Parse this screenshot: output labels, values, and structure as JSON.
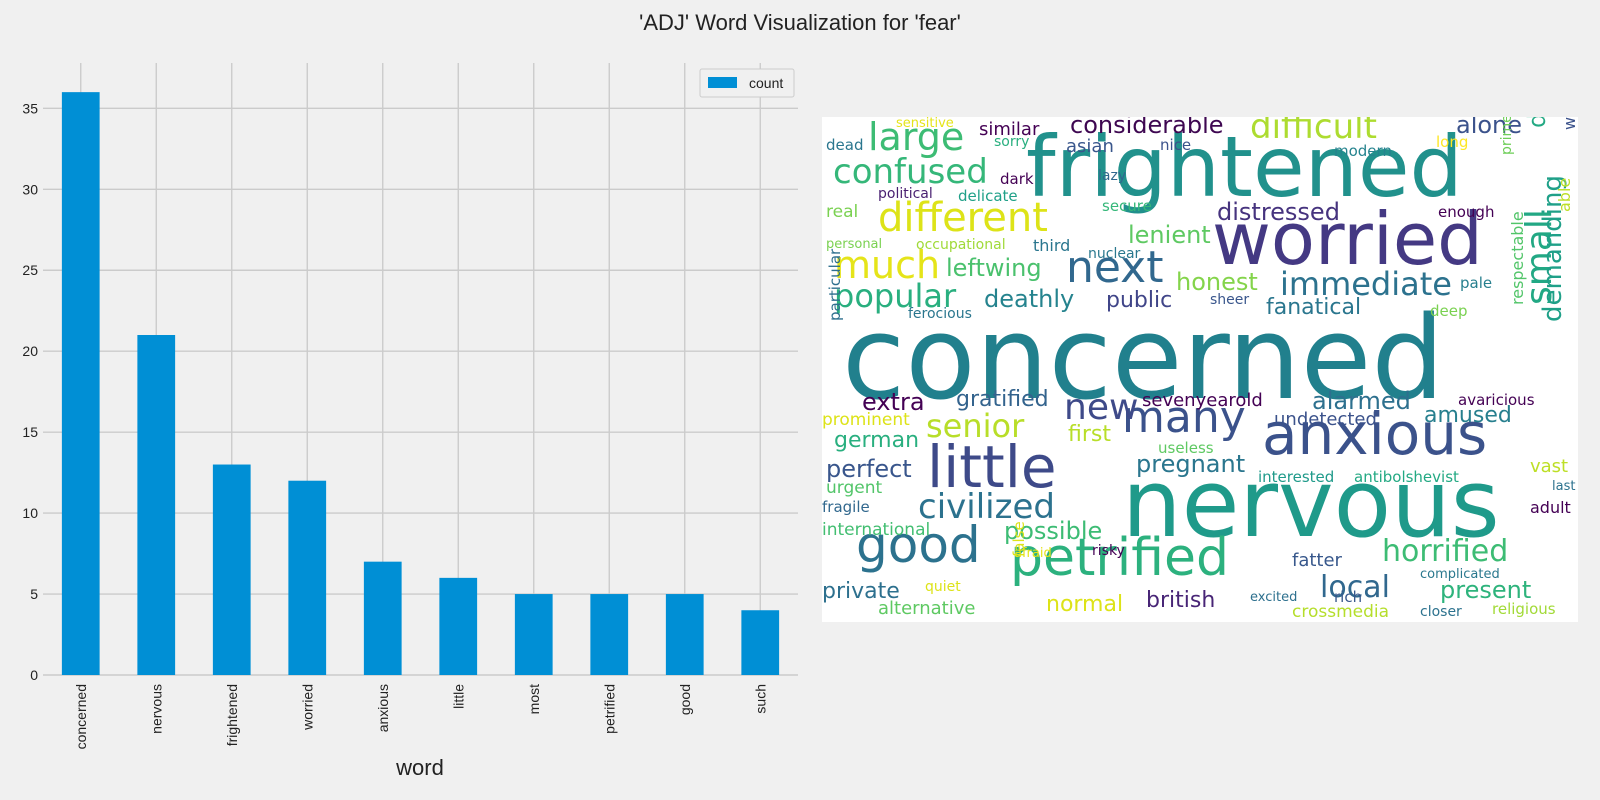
{
  "title": "'ADJ' Word Visualization for 'fear'",
  "chart_data": [
    {
      "type": "bar",
      "categories": [
        "concerned",
        "nervous",
        "frightened",
        "worried",
        "anxious",
        "little",
        "most",
        "petrified",
        "good",
        "such"
      ],
      "values": [
        36,
        21,
        13,
        12,
        7,
        6,
        5,
        5,
        5,
        4
      ],
      "series": [
        {
          "name": "count",
          "values": [
            36,
            21,
            13,
            12,
            7,
            6,
            5,
            5,
            5,
            4
          ]
        }
      ],
      "xlabel": "word",
      "ylabel": "",
      "ylim": [
        0,
        37.8
      ],
      "yticks": [
        0,
        5,
        10,
        15,
        20,
        25,
        30,
        35
      ],
      "grid": true,
      "legend": "top-right",
      "bar_color": "#008fd5"
    },
    {
      "type": "wordcloud",
      "colormap": "viridis",
      "words": [
        {
          "text": "concerned",
          "color": "#21808d"
        },
        {
          "text": "nervous",
          "color": "#1f9a8a"
        },
        {
          "text": "frightened",
          "color": "#21918c"
        },
        {
          "text": "worried",
          "color": "#443983"
        },
        {
          "text": "anxious",
          "color": "#3b528b"
        },
        {
          "text": "little",
          "color": "#3e4a89"
        },
        {
          "text": "petrified",
          "color": "#2cb17e"
        },
        {
          "text": "good",
          "color": "#2c728e"
        },
        {
          "text": "many",
          "color": "#3b528b"
        },
        {
          "text": "next",
          "color": "#31688e"
        },
        {
          "text": "new",
          "color": "#3e4a89"
        },
        {
          "text": "different",
          "color": "#dde318"
        },
        {
          "text": "confused",
          "color": "#35b779"
        },
        {
          "text": "large",
          "color": "#3dbc74"
        },
        {
          "text": "difficult",
          "color": "#addc30"
        },
        {
          "text": "civilized",
          "color": "#2c728e"
        },
        {
          "text": "much",
          "color": "#e5e419"
        },
        {
          "text": "popular",
          "color": "#29af7f"
        },
        {
          "text": "immediate",
          "color": "#2c728e"
        },
        {
          "text": "horrified",
          "color": "#3dbc74"
        },
        {
          "text": "senior",
          "color": "#b8de29"
        },
        {
          "text": "local",
          "color": "#31688e"
        },
        {
          "text": "small",
          "color": "#22a884"
        },
        {
          "text": "considerable",
          "color": "#3e0751"
        },
        {
          "text": "alone",
          "color": "#3b528b"
        },
        {
          "text": "diplomatic",
          "color": "#23a983"
        },
        {
          "text": "demanding",
          "color": "#1fa088"
        },
        {
          "text": "distressed",
          "color": "#46337e"
        },
        {
          "text": "possible",
          "color": "#3dbc74"
        },
        {
          "text": "leftwing",
          "color": "#4ac16d"
        },
        {
          "text": "deathly",
          "color": "#25838e"
        },
        {
          "text": "lenient",
          "color": "#5ec962"
        },
        {
          "text": "honest",
          "color": "#84d44b"
        },
        {
          "text": "fanatical",
          "color": "#2a768e"
        },
        {
          "text": "public",
          "color": "#404588"
        },
        {
          "text": "extra",
          "color": "#440154"
        },
        {
          "text": "gratified",
          "color": "#33638d"
        },
        {
          "text": "alarmed",
          "color": "#2d708e"
        },
        {
          "text": "amused",
          "color": "#277f8e"
        },
        {
          "text": "german",
          "color": "#29af7f"
        },
        {
          "text": "first",
          "color": "#b8de29"
        },
        {
          "text": "perfect",
          "color": "#39568c"
        },
        {
          "text": "pregnant",
          "color": "#2a768e"
        },
        {
          "text": "present",
          "color": "#2eb37c"
        },
        {
          "text": "private",
          "color": "#2d708e"
        },
        {
          "text": "british",
          "color": "#482576"
        },
        {
          "text": "normal",
          "color": "#dde318"
        },
        {
          "text": "fatter",
          "color": "#38588c"
        },
        {
          "text": "similar",
          "color": "#440154"
        },
        {
          "text": "asian",
          "color": "#39568c"
        },
        {
          "text": "sevenyearold",
          "color": "#440154"
        },
        {
          "text": "undetected",
          "color": "#3b528b"
        },
        {
          "text": "vast",
          "color": "#bddf26"
        },
        {
          "text": "international",
          "color": "#42be71"
        },
        {
          "text": "alternative",
          "color": "#5ec962"
        },
        {
          "text": "crossmedia",
          "color": "#b5de2b"
        },
        {
          "text": "religious",
          "color": "#a2da37"
        },
        {
          "text": "prominent",
          "color": "#dde318"
        },
        {
          "text": "urgent",
          "color": "#52c569"
        },
        {
          "text": "sensitive",
          "color": "#e5e419"
        },
        {
          "text": "dead",
          "color": "#2a768e"
        },
        {
          "text": "sorry",
          "color": "#29af7f"
        },
        {
          "text": "nice",
          "color": "#3b528b"
        },
        {
          "text": "modern",
          "color": "#25838e"
        },
        {
          "text": "long",
          "color": "#fde725"
        },
        {
          "text": "political",
          "color": "#481f70"
        },
        {
          "text": "delicate",
          "color": "#1fa088"
        },
        {
          "text": "dark",
          "color": "#440154"
        },
        {
          "text": "lazy",
          "color": "#31688e"
        },
        {
          "text": "real",
          "color": "#7ad151"
        },
        {
          "text": "secure",
          "color": "#35b779"
        },
        {
          "text": "personal",
          "color": "#7ad151"
        },
        {
          "text": "occupational",
          "color": "#a0da39"
        },
        {
          "text": "third",
          "color": "#2a768e"
        },
        {
          "text": "nuclear",
          "color": "#2a788e"
        },
        {
          "text": "enough",
          "color": "#440154"
        },
        {
          "text": "pale",
          "color": "#277f8e"
        },
        {
          "text": "sheer",
          "color": "#39568c"
        },
        {
          "text": "deep",
          "color": "#7ad151"
        },
        {
          "text": "ferocious",
          "color": "#2a768e"
        },
        {
          "text": "prime",
          "color": "#6ece58"
        },
        {
          "text": "able",
          "color": "#bddf26"
        },
        {
          "text": "weaker",
          "color": "#3b528b"
        },
        {
          "text": "respectable",
          "color": "#52c569"
        },
        {
          "text": "particular",
          "color": "#2e6f8e"
        },
        {
          "text": "avaricious",
          "color": "#440154"
        },
        {
          "text": "useless",
          "color": "#5ec962"
        },
        {
          "text": "interested",
          "color": "#1f9a8a"
        },
        {
          "text": "antibolshevist",
          "color": "#23a983"
        },
        {
          "text": "last",
          "color": "#2c728e"
        },
        {
          "text": "fragile",
          "color": "#31688e"
        },
        {
          "text": "adult",
          "color": "#440154"
        },
        {
          "text": "afraid",
          "color": "#e5e419"
        },
        {
          "text": "risky",
          "color": "#440154"
        },
        {
          "text": "false",
          "color": "#dde318"
        },
        {
          "text": "complicated",
          "color": "#2a788e"
        },
        {
          "text": "quiet",
          "color": "#dde318"
        },
        {
          "text": "excited",
          "color": "#2d708e"
        },
        {
          "text": "rich",
          "color": "#38588c"
        },
        {
          "text": "closer",
          "color": "#2c728e"
        }
      ]
    }
  ]
}
